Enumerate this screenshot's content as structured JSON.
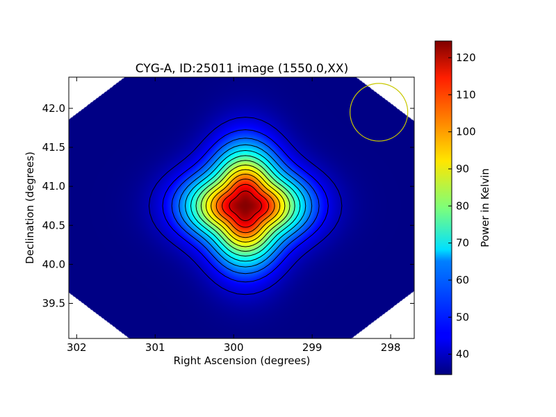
{
  "chart_data": {
    "type": "heatmap",
    "title": "CYG-A, ID:25011 image (1550.0,XX)",
    "xlabel": "Right Ascension (degrees)",
    "ylabel": "Declination (degrees)",
    "xlim": [
      302.1,
      297.7
    ],
    "ylim": [
      39.05,
      42.4
    ],
    "x_reversed": true,
    "xticks": [
      302,
      301,
      300,
      299,
      298
    ],
    "xtick_labels": [
      "302",
      "301",
      "300",
      "299",
      "298"
    ],
    "yticks": [
      39.5,
      40.0,
      40.5,
      41.0,
      41.5,
      42.0
    ],
    "ytick_labels": [
      "39.5",
      "40.0",
      "40.5",
      "41.0",
      "41.5",
      "42.0"
    ],
    "peak": {
      "x": 299.85,
      "y": 40.75,
      "value": 124
    },
    "background_value": 35,
    "source_sigma_deg": 0.45,
    "contour_count": 13,
    "beam": {
      "x": 298.15,
      "y": 41.95,
      "radius_deg": 0.37,
      "color": "#c8c800"
    },
    "colorbar": {
      "label": "Power in Kelvin",
      "min": 34.5,
      "max": 124.5,
      "ticks": [
        40,
        50,
        60,
        70,
        80,
        90,
        100,
        110,
        120
      ],
      "tick_labels": [
        "40",
        "50",
        "60",
        "70",
        "80",
        "90",
        "100",
        "110",
        "120"
      ],
      "colormap": "jet"
    },
    "grid": false
  }
}
